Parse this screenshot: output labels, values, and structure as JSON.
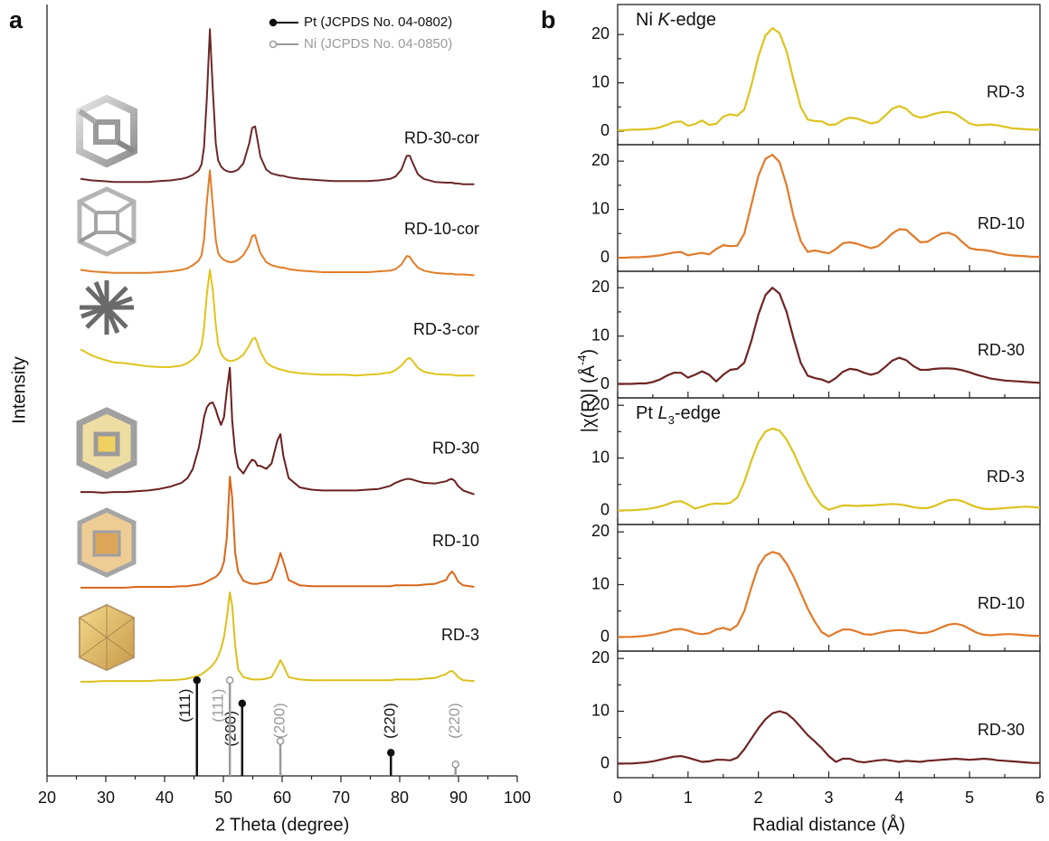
{
  "chart_data": [
    {
      "type": "line",
      "panel_label": "a",
      "xlabel": "2 Theta (degree)",
      "ylabel": "Intensity",
      "xlim": [
        20,
        100
      ],
      "xticks": [
        20,
        30,
        40,
        50,
        60,
        70,
        80,
        90,
        100
      ],
      "xticks_minor": [
        25,
        35,
        45,
        55,
        65,
        75,
        85,
        95
      ],
      "ylim": [
        0,
        100
      ],
      "legend": "upper right",
      "x": [
        25.7,
        27.6,
        29.5,
        31.4,
        33.3,
        35.2,
        37.2,
        39.1,
        41.0,
        42.9,
        43.9,
        44.8,
        45.8,
        46.3,
        46.7,
        47.2,
        47.7,
        48.2,
        48.7,
        49.1,
        49.6,
        50.1,
        50.6,
        51.1,
        51.5,
        52.0,
        52.5,
        53.4,
        54.4,
        54.9,
        55.4,
        55.8,
        56.3,
        57.3,
        58.2,
        59.2,
        59.7,
        60.2,
        61.1,
        63.0,
        65.0,
        66.9,
        68.8,
        70.7,
        72.6,
        74.5,
        76.4,
        78.4,
        79.3,
        80.3,
        81.2,
        81.7,
        82.2,
        83.1,
        84.1,
        86.0,
        87.9,
        88.4,
        88.9,
        89.4,
        89.9,
        90.8,
        92.7
      ],
      "series": [
        {
          "name": "RD-30-cor",
          "color": "#6b2828",
          "values": [
            77.4,
            77.2,
            77.1,
            77.0,
            77.0,
            77.0,
            77.0,
            77.1,
            77.2,
            77.4,
            77.6,
            77.9,
            78.5,
            79.3,
            81.5,
            88,
            96.8,
            89,
            82,
            79.8,
            79,
            78.6,
            78.4,
            78.3,
            78.3,
            78.4,
            78.6,
            79.4,
            82,
            84,
            84.2,
            82.5,
            80.3,
            78.6,
            78.1,
            77.9,
            77.8,
            77.8,
            77.6,
            77.4,
            77.3,
            77.2,
            77.1,
            77.1,
            77.1,
            77.1,
            77.2,
            77.4,
            77.7,
            78.6,
            80.4,
            80.4,
            79.5,
            78,
            77.4,
            77.0,
            76.9,
            76.9,
            76.9,
            76.8,
            76.8,
            76.7,
            76.7
          ]
        },
        {
          "name": "RD-10-cor",
          "color": "#e07d28",
          "values": [
            65.6,
            65.4,
            65.3,
            65.2,
            65.2,
            65.2,
            65.2,
            65.3,
            65.4,
            65.6,
            65.8,
            66.2,
            66.8,
            67.5,
            69.5,
            74.5,
            78.5,
            74,
            69.5,
            67.8,
            67.2,
            66.9,
            66.7,
            66.6,
            66.6,
            66.7,
            66.9,
            67.5,
            68.8,
            70,
            70.1,
            69,
            67.8,
            66.6,
            66.2,
            66,
            65.9,
            65.9,
            65.7,
            65.5,
            65.4,
            65.3,
            65.3,
            65.3,
            65.3,
            65.3,
            65.4,
            65.5,
            65.7,
            66.3,
            67.4,
            67.3,
            66.7,
            65.9,
            65.5,
            65.2,
            65.1,
            65.1,
            65.1,
            65.0,
            65.0,
            65.0,
            64.9
          ]
        },
        {
          "name": "RD-3-cor",
          "color": "#e0c41c",
          "values": [
            55.3,
            54.5,
            54.0,
            53.6,
            53.5,
            53.3,
            53.1,
            53.0,
            53.0,
            53.2,
            53.5,
            54,
            54.8,
            55.8,
            58,
            62.5,
            65.6,
            63,
            58.5,
            56,
            54.8,
            54.2,
            53.9,
            53.8,
            53.8,
            53.9,
            54.1,
            54.6,
            55.8,
            56.6,
            56.8,
            56.1,
            55,
            53.6,
            53.1,
            52.8,
            52.7,
            52.6,
            52.4,
            52.2,
            52.1,
            52.0,
            52.0,
            52.0,
            51.9,
            52.0,
            52.1,
            52.3,
            52.6,
            53.2,
            54.0,
            54.2,
            53.8,
            52.9,
            52.4,
            52.1,
            52.0,
            52.0,
            52.0,
            51.9,
            51.9,
            51.9,
            51.9
          ]
        },
        {
          "name": "RD-30",
          "color": "#6b2020",
          "values": [
            36.8,
            36.8,
            36.7,
            36.8,
            36.8,
            36.9,
            37.0,
            37.2,
            37.5,
            38.0,
            38.6,
            39.8,
            42.5,
            44.5,
            46.5,
            47.8,
            48.3,
            48.4,
            47.5,
            46.5,
            45.5,
            46.5,
            50,
            52.9,
            46,
            42,
            40,
            39.2,
            40.5,
            41.0,
            40.8,
            40.2,
            40.2,
            39.8,
            40.5,
            43.5,
            44.3,
            41.5,
            38.6,
            37.4,
            37.1,
            37.0,
            37.0,
            37.0,
            37.0,
            37.1,
            37.2,
            37.6,
            38.0,
            38.3,
            38.5,
            38.5,
            38.4,
            38.2,
            38.0,
            37.9,
            38.2,
            38.4,
            38.5,
            38.2,
            37.6,
            37.0,
            36.5
          ]
        },
        {
          "name": "RD-10",
          "color": "#d8661a",
          "values": [
            24.4,
            24.4,
            24.4,
            24.4,
            24.4,
            24.5,
            24.5,
            24.5,
            24.5,
            24.6,
            24.6,
            24.7,
            24.8,
            24.9,
            25.0,
            25.2,
            25.4,
            25.6,
            25.8,
            26.1,
            26.6,
            27.8,
            31,
            38.8,
            36,
            29,
            26.5,
            25.3,
            25.0,
            24.9,
            24.9,
            24.9,
            25.0,
            25.1,
            25.5,
            27.5,
            28.9,
            27.8,
            25.4,
            24.7,
            24.6,
            24.6,
            24.6,
            24.6,
            24.6,
            24.6,
            24.6,
            24.6,
            24.7,
            24.7,
            24.7,
            24.7,
            24.7,
            24.7,
            24.8,
            24.9,
            25.4,
            26.1,
            26.5,
            26.0,
            25.2,
            24.7,
            24.5
          ]
        },
        {
          "name": "RD-3",
          "color": "#dcc01c",
          "values": [
            12.2,
            12.2,
            12.3,
            12.3,
            12.3,
            12.3,
            12.3,
            12.4,
            12.4,
            12.5,
            12.6,
            12.8,
            13.0,
            13.2,
            13.4,
            13.7,
            14.0,
            14.4,
            14.9,
            15.5,
            16.5,
            18,
            20.5,
            23.8,
            22,
            17,
            13.8,
            12.8,
            12.6,
            12.5,
            12.5,
            12.5,
            12.5,
            12.6,
            12.8,
            14.2,
            15.0,
            14.3,
            12.8,
            12.5,
            12.4,
            12.4,
            12.4,
            12.4,
            12.4,
            12.4,
            12.4,
            12.4,
            12.5,
            12.5,
            12.5,
            12.5,
            12.5,
            12.5,
            12.6,
            12.7,
            13.2,
            13.5,
            13.6,
            13.3,
            12.8,
            12.4,
            12.3
          ]
        }
      ],
      "references": [
        {
          "name": "Pt (JCPDS No. 04-0802)",
          "color": "#111111",
          "marker": "filled",
          "x": [
            45.5,
            53.2,
            78.5
          ],
          "values": [
            12.4,
            9.4,
            3.0
          ],
          "labels": [
            "(111)",
            "(200)",
            "(220)"
          ]
        },
        {
          "name": "Ni (JCPDS No. 04-0850)",
          "color": "#9a9a9a",
          "marker": "open",
          "x": [
            51.1,
            59.7,
            89.5
          ],
          "values": [
            12.4,
            4.5,
            1.5
          ],
          "labels": [
            "(111)",
            "(200)",
            "(220)"
          ]
        }
      ]
    },
    {
      "type": "line",
      "panel_label": "b",
      "xlabel": "Radial distance (Å)",
      "ylabel": [
        "|χ(R)| (Å",
        "-4",
        ")"
      ],
      "xlim": [
        0,
        6
      ],
      "xticks": [
        0,
        1,
        2,
        3,
        4,
        5,
        6
      ],
      "xticks_minor": [
        0.5,
        1.5,
        2.5,
        3.5,
        4.5,
        5.5
      ],
      "x": [
        0,
        0.1,
        0.2,
        0.3,
        0.4,
        0.5,
        0.6,
        0.7,
        0.8,
        0.9,
        1.0,
        1.1,
        1.2,
        1.3,
        1.4,
        1.5,
        1.6,
        1.7,
        1.8,
        1.9,
        2.0,
        2.1,
        2.2,
        2.3,
        2.4,
        2.5,
        2.6,
        2.7,
        2.8,
        2.9,
        3.0,
        3.1,
        3.2,
        3.3,
        3.4,
        3.5,
        3.6,
        3.7,
        3.8,
        3.9,
        4.0,
        4.1,
        4.2,
        4.3,
        4.4,
        4.5,
        4.6,
        4.7,
        4.8,
        4.9,
        5.0,
        5.1,
        5.2,
        5.3,
        5.4,
        5.5,
        5.6,
        5.7,
        5.8,
        5.9,
        6.0
      ],
      "panels": [
        {
          "title": [
            "Ni ",
            "K",
            "-edge"
          ],
          "name": "RD-3",
          "color": "#dcc31e",
          "ylim": [
            -2.8,
            26.2
          ],
          "yticks": [
            0,
            10,
            20
          ],
          "yticks_minor": [
            5,
            15
          ],
          "values": [
            0.2,
            0.2,
            0.3,
            0.3,
            0.4,
            0.5,
            0.8,
            1.3,
            1.9,
            2.0,
            1.1,
            1.5,
            2.2,
            1.3,
            1.5,
            3.0,
            3.5,
            3.2,
            4.5,
            9.5,
            15.5,
            19.8,
            21.3,
            20.3,
            16.5,
            10.5,
            5.0,
            2.4,
            2.1,
            2.0,
            1.3,
            1.4,
            2.3,
            2.8,
            2.6,
            2.1,
            1.6,
            1.9,
            3.2,
            4.6,
            5.2,
            4.6,
            3.3,
            2.8,
            3.1,
            3.6,
            3.9,
            4.0,
            3.6,
            2.6,
            1.6,
            1.2,
            1.3,
            1.4,
            1.2,
            0.9,
            0.6,
            0.5,
            0.4,
            0.3,
            0.3
          ]
        },
        {
          "name": "RD-10",
          "color": "#e07a2a",
          "ylim": [
            -2.8,
            23.4
          ],
          "yticks": [
            0,
            10,
            20
          ],
          "yticks_minor": [
            5,
            15
          ],
          "values": [
            0,
            0,
            0.1,
            0.1,
            0.2,
            0.3,
            0.5,
            0.8,
            1.1,
            1.2,
            0.5,
            0.8,
            1.0,
            0.7,
            1.8,
            2.6,
            2.4,
            2.5,
            5,
            11,
            17,
            20.5,
            21.3,
            19.8,
            15,
            8.5,
            3.5,
            1.2,
            1.5,
            1.2,
            0.9,
            1.8,
            3.0,
            3.2,
            2.9,
            2.4,
            2.0,
            2.4,
            3.6,
            5.0,
            5.9,
            5.8,
            4.5,
            3.2,
            3.3,
            4.2,
            5.0,
            5.2,
            4.6,
            3.2,
            2.0,
            1.7,
            1.6,
            1.4,
            1.0,
            0.7,
            0.5,
            0.4,
            0.3,
            0.2,
            0.2
          ]
        },
        {
          "name": "RD-30",
          "color": "#6e2424",
          "ylim": [
            -2.8,
            23.4
          ],
          "yticks": [
            0,
            10,
            20
          ],
          "yticks_minor": [
            5,
            15
          ],
          "values": [
            0.1,
            0.1,
            0.1,
            0.2,
            0.2,
            0.5,
            1.0,
            1.8,
            2.4,
            2.4,
            1.4,
            2.0,
            2.7,
            2.0,
            0.6,
            2.0,
            3.0,
            3.2,
            4.5,
            9,
            14.5,
            18.5,
            20.0,
            18.8,
            15,
            9.5,
            4.5,
            1.8,
            1.3,
            1.0,
            0.4,
            1.3,
            2.6,
            3.2,
            3.0,
            2.4,
            2.0,
            2.4,
            3.6,
            4.9,
            5.5,
            5.0,
            3.8,
            3.0,
            3.0,
            3.2,
            3.3,
            3.3,
            3.2,
            2.9,
            2.5,
            2.0,
            1.6,
            1.2,
            1.0,
            0.8,
            0.7,
            0.6,
            0.5,
            0.4,
            0.3
          ]
        },
        {
          "title": [
            "Pt ",
            "L",
            "3",
            "-edge"
          ],
          "name": "RD-3",
          "color": "#dcc31e",
          "ylim": [
            -2.6,
            21.4
          ],
          "yticks": [
            0,
            10,
            20
          ],
          "yticks_minor": [
            5,
            15
          ],
          "values": [
            0.1,
            0.1,
            0.1,
            0.2,
            0.3,
            0.5,
            0.8,
            1.2,
            1.7,
            1.8,
            1.2,
            0.4,
            0.8,
            1.2,
            1.4,
            1.3,
            1.5,
            2.5,
            5.5,
            9.5,
            13,
            15,
            15.6,
            15.2,
            13.5,
            11,
            8,
            5.2,
            2.8,
            1.0,
            0.2,
            0.6,
            1.0,
            1.0,
            0.9,
            1.0,
            1.0,
            1.1,
            1.2,
            1.3,
            1.2,
            1.0,
            0.7,
            0.5,
            0.5,
            0.9,
            1.5,
            2.0,
            2.1,
            1.8,
            1.2,
            0.7,
            0.4,
            0.3,
            0.4,
            0.5,
            0.6,
            0.7,
            0.8,
            0.7,
            0.6
          ]
        },
        {
          "name": "RD-10",
          "color": "#e07a2a",
          "ylim": [
            -2.6,
            21.4
          ],
          "yticks": [
            0,
            10,
            20
          ],
          "yticks_minor": [
            5,
            15
          ],
          "values": [
            0.1,
            0.1,
            0.1,
            0.2,
            0.3,
            0.5,
            0.8,
            1.1,
            1.5,
            1.6,
            1.3,
            0.8,
            0.6,
            0.8,
            1.5,
            1.8,
            1.4,
            2.3,
            5,
            9.5,
            13.5,
            15.5,
            16.2,
            15.8,
            14,
            11.5,
            8.5,
            5.5,
            3.0,
            1.0,
            0.2,
            0.9,
            1.5,
            1.5,
            1.1,
            0.6,
            0.5,
            0.8,
            1.1,
            1.3,
            1.4,
            1.3,
            1.0,
            0.8,
            0.9,
            1.3,
            1.9,
            2.4,
            2.6,
            2.3,
            1.6,
            0.9,
            0.5,
            0.4,
            0.5,
            0.6,
            0.6,
            0.5,
            0.4,
            0.3,
            0.3
          ]
        },
        {
          "name": "RD-30",
          "color": "#6e2424",
          "ylim": [
            -2.6,
            21.4
          ],
          "yticks": [
            0,
            10,
            20
          ],
          "yticks_minor": [
            5,
            15
          ],
          "values": [
            0.1,
            0.1,
            0.1,
            0.2,
            0.3,
            0.5,
            0.8,
            1.1,
            1.4,
            1.5,
            1.2,
            0.8,
            0.4,
            0.5,
            0.8,
            0.8,
            0.7,
            1.2,
            2.8,
            4.8,
            6.8,
            8.5,
            9.6,
            10,
            9.6,
            8.5,
            7.0,
            5.5,
            4.3,
            3.0,
            1.5,
            0.4,
            1.0,
            1.0,
            0.5,
            0.3,
            0.5,
            0.7,
            0.8,
            0.6,
            0.4,
            0.6,
            0.5,
            0.4,
            0.6,
            0.7,
            0.8,
            0.9,
            1.0,
            0.9,
            0.8,
            0.9,
            1.0,
            0.9,
            0.7,
            0.6,
            0.5,
            0.4,
            0.3,
            0.2,
            0.2
          ]
        }
      ]
    }
  ]
}
